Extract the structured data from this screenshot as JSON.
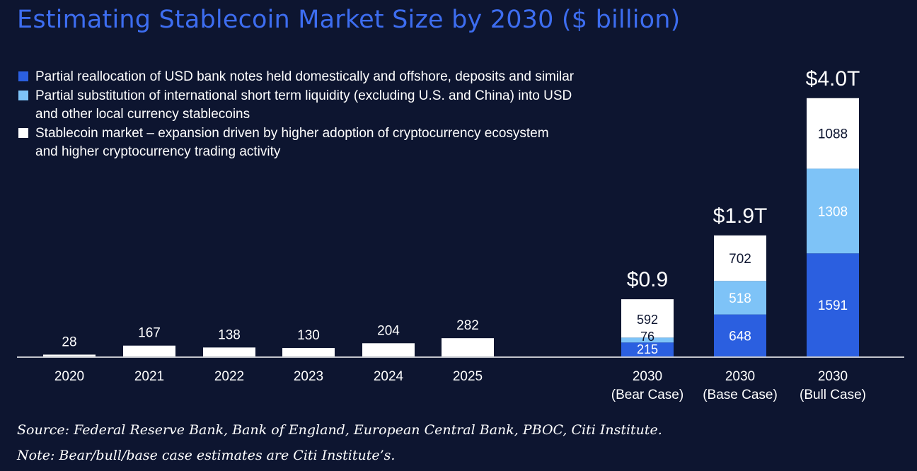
{
  "chart_data": {
    "type": "bar",
    "title": "Estimating Stablecoin Market Size by 2030 ($ billion)",
    "xlabel": "",
    "ylabel": "",
    "historical": {
      "categories": [
        "2020",
        "2021",
        "2022",
        "2023",
        "2024",
        "2025"
      ],
      "values": [
        28,
        167,
        138,
        130,
        204,
        282
      ]
    },
    "scenarios": [
      {
        "category_line1": "2030",
        "category_line2": "(Bear Case)",
        "total_label": "$0.9",
        "segments": {
          "reallocation": 215,
          "substitution": 76,
          "expansion": 592
        }
      },
      {
        "category_line1": "2030",
        "category_line2": "(Base Case)",
        "total_label": "$1.9T",
        "segments": {
          "reallocation": 648,
          "substitution": 518,
          "expansion": 702
        }
      },
      {
        "category_line1": "2030",
        "category_line2": "(Bull Case)",
        "total_label": "$4.0T",
        "segments": {
          "reallocation": 1591,
          "substitution": 1308,
          "expansion": 1088
        }
      }
    ],
    "series": [
      {
        "key": "reallocation",
        "name_line1": "Partial reallocation of USD bank notes held domestically and offshore, deposits and similar",
        "color": "#2b5fe0"
      },
      {
        "key": "substitution",
        "name_line1": "Partial substitution of international short term liquidity (excluding U.S. and China) into USD",
        "name_line2": "and other local currency stablecoins",
        "color": "#7ec3f7"
      },
      {
        "key": "expansion",
        "name_line1": "Stablecoin market – expansion driven by higher adoption of cryptocurrency ecosystem",
        "name_line2": "and higher cryptocurrency trading activity",
        "color": "#ffffff"
      }
    ],
    "ylim": [
      0,
      4000
    ],
    "grid": false,
    "legend_position": "top-left"
  },
  "footer": {
    "source": "Source: Federal Reserve Bank, Bank of England, European Central Bank, PBOC, Citi Institute.",
    "note": "Note: Bear/bull/base case estimates are Citi Institute’s."
  },
  "colors": {
    "background": "#0d1530",
    "title": "#3d6df0",
    "axis": "#ffffff",
    "dark_label": "#0d1530"
  }
}
